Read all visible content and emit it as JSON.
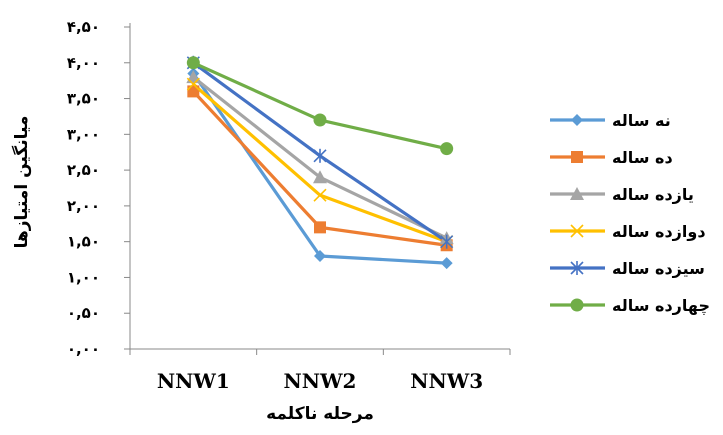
{
  "chart_data": {
    "type": "line",
    "title": "",
    "xlabel": "مرحله ناکلمه",
    "ylabel": "میانگین امتیازها",
    "categories": [
      "NNW1",
      "NNW2",
      "NNW3"
    ],
    "ylim": [
      0,
      4.5
    ],
    "y_ticks": [
      0,
      0.5,
      1,
      1.5,
      2,
      2.5,
      3,
      3.5,
      4,
      4.5
    ],
    "y_tick_labels": [
      "۰,۰۰",
      "۰,۵۰",
      "۱,۰۰",
      "۱,۵۰",
      "۲,۰۰",
      "۲,۵۰",
      "۳,۰۰",
      "۳,۵۰",
      "۴,۰۰",
      "۴,۵۰"
    ],
    "grid": false,
    "legend_position": "right",
    "series": [
      {
        "name": "نه ساله",
        "values": [
          3.85,
          1.3,
          1.2
        ],
        "color": "#5B9BD5",
        "marker": "diamond"
      },
      {
        "name": "ده ساله",
        "values": [
          3.6,
          1.7,
          1.45
        ],
        "color": "#ED7D31",
        "marker": "square"
      },
      {
        "name": "یازده ساله",
        "values": [
          3.8,
          2.4,
          1.55
        ],
        "color": "#A5A5A5",
        "marker": "triangle"
      },
      {
        "name": "دوازده ساله",
        "values": [
          3.7,
          2.15,
          1.5
        ],
        "color": "#FFC000",
        "marker": "x"
      },
      {
        "name": "سیزده ساله",
        "values": [
          4.0,
          2.7,
          1.5
        ],
        "color": "#4472C4",
        "marker": "star"
      },
      {
        "name": "چهارده ساله",
        "values": [
          4.0,
          3.2,
          2.8
        ],
        "color": "#70AD47",
        "marker": "circle"
      }
    ]
  }
}
